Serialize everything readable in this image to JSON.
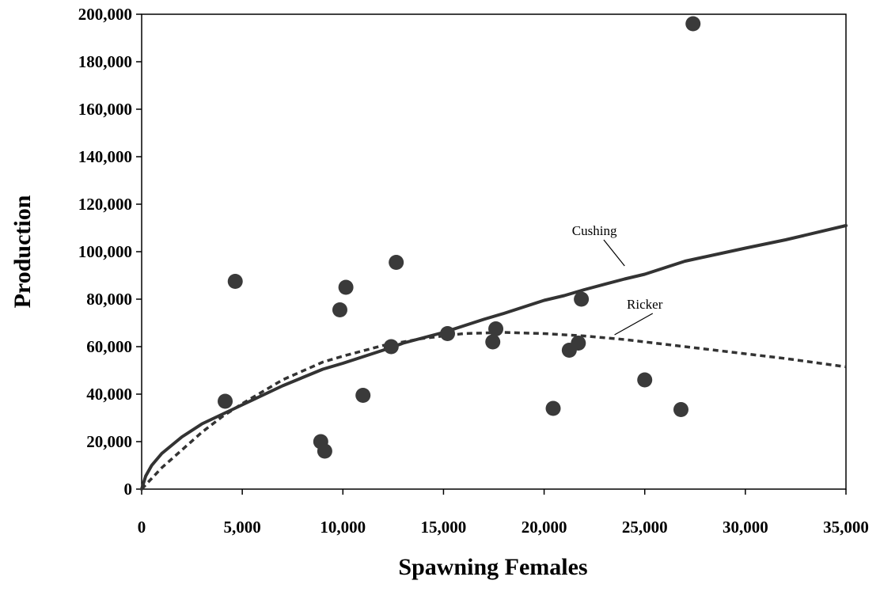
{
  "chart_data": {
    "type": "scatter",
    "xlabel": "Spawning Females",
    "ylabel": "Production",
    "xlim": [
      0,
      35000
    ],
    "ylim": [
      0,
      200000
    ],
    "x_ticks": [
      0,
      5000,
      10000,
      15000,
      20000,
      25000,
      30000,
      35000
    ],
    "x_tick_labels": [
      "0",
      "5,000",
      "10,000",
      "15,000",
      "20,000",
      "25,000",
      "30,000",
      "35,000"
    ],
    "y_ticks": [
      0,
      20000,
      40000,
      60000,
      80000,
      100000,
      120000,
      140000,
      160000,
      180000,
      200000
    ],
    "y_tick_labels": [
      "0",
      "20,000",
      "40,000",
      "60,000",
      "80,000",
      "100,000",
      "120,000",
      "140,000",
      "160,000",
      "180,000",
      "200,000"
    ],
    "grid": false,
    "legend": "none",
    "points": [
      {
        "x": 4150,
        "y": 37000
      },
      {
        "x": 4650,
        "y": 87500
      },
      {
        "x": 8900,
        "y": 20000
      },
      {
        "x": 9100,
        "y": 16000
      },
      {
        "x": 9850,
        "y": 75500
      },
      {
        "x": 10150,
        "y": 85000
      },
      {
        "x": 11000,
        "y": 39500
      },
      {
        "x": 12400,
        "y": 60000
      },
      {
        "x": 12650,
        "y": 95500
      },
      {
        "x": 15200,
        "y": 65500
      },
      {
        "x": 17450,
        "y": 62000
      },
      {
        "x": 17600,
        "y": 67500
      },
      {
        "x": 20450,
        "y": 34000
      },
      {
        "x": 21250,
        "y": 58500
      },
      {
        "x": 21700,
        "y": 61500
      },
      {
        "x": 21850,
        "y": 80000
      },
      {
        "x": 25000,
        "y": 46000
      },
      {
        "x": 26800,
        "y": 33500
      },
      {
        "x": 27400,
        "y": 196000
      }
    ],
    "series": [
      {
        "name": "Cushing",
        "style": "solid",
        "x": [
          0,
          200,
          500,
          1000,
          2000,
          3000,
          4000,
          5000,
          7000,
          9000,
          10000,
          12000,
          13000,
          15000,
          17000,
          18000,
          20000,
          21000,
          22000,
          24000,
          25000,
          27000,
          30000,
          32000,
          35000
        ],
        "y": [
          0,
          5500,
          10000,
          15000,
          22000,
          27500,
          31500,
          35500,
          43500,
          50500,
          53000,
          58500,
          61500,
          66000,
          71500,
          74000,
          79500,
          81500,
          84000,
          88500,
          90500,
          96000,
          101500,
          105000,
          111000
        ]
      },
      {
        "name": "Ricker",
        "style": "dashed",
        "x": [
          0,
          500,
          1000,
          2000,
          3000,
          4000,
          5000,
          7000,
          9000,
          10000,
          12000,
          14000,
          16000,
          18000,
          20000,
          22000,
          24000,
          26000,
          28000,
          30000,
          32000,
          35000
        ],
        "y": [
          0,
          4500,
          9000,
          16500,
          24000,
          30500,
          36000,
          46000,
          53500,
          56000,
          60500,
          63500,
          65500,
          66000,
          65500,
          64500,
          63000,
          61000,
          59000,
          57000,
          55000,
          51500
        ]
      }
    ],
    "annotations": [
      {
        "text": "Cushing",
        "x": 22500,
        "y": 107000,
        "points_to": [
          24000,
          94000
        ]
      },
      {
        "text": "Ricker",
        "x": 25000,
        "y": 76000,
        "points_to": [
          23500,
          65000
        ]
      }
    ],
    "colors": {
      "points": "#3a3a3a",
      "cushing": "#333333",
      "ricker": "#333333",
      "axis": "#000000"
    }
  }
}
